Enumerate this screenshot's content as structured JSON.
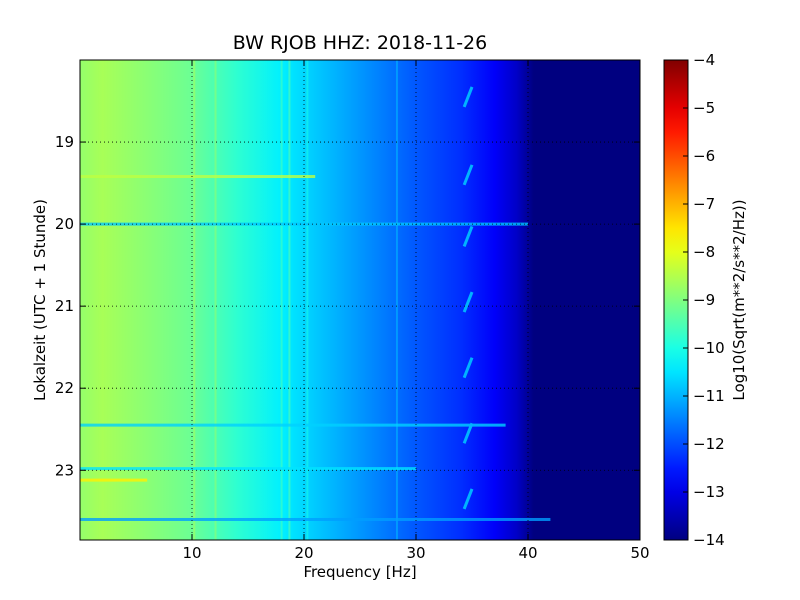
{
  "chart_data": {
    "type": "heatmap",
    "title": "BW RJOB HHZ: 2018-11-26",
    "xlabel": "Frequency [Hz]",
    "ylabel": "Lokalzeit (UTC + 1 Stunde)",
    "xlim": [
      0,
      50
    ],
    "ylim": [
      18.0,
      23.85
    ],
    "y_inverted": true,
    "x_ticks": [
      10,
      20,
      30,
      40,
      50
    ],
    "y_ticks": [
      19,
      20,
      21,
      22,
      23
    ],
    "grid": true,
    "colormap": "jet",
    "colorbar": {
      "label": "Log10(Sqrt(m**2/s**2/Hz))",
      "range": [
        -14,
        -4
      ],
      "ticks": [
        -4,
        -5,
        -6,
        -7,
        -8,
        -9,
        -10,
        -11,
        -12,
        -13,
        -14
      ]
    },
    "frequency_profile": [
      {
        "x": 0,
        "value": -8.8
      },
      {
        "x": 2,
        "value": -8.6
      },
      {
        "x": 6,
        "value": -8.9
      },
      {
        "x": 10,
        "value": -9.2
      },
      {
        "x": 14,
        "value": -9.8
      },
      {
        "x": 18,
        "value": -10.4
      },
      {
        "x": 22,
        "value": -10.9
      },
      {
        "x": 26,
        "value": -11.4
      },
      {
        "x": 30,
        "value": -11.9
      },
      {
        "x": 34,
        "value": -12.3
      },
      {
        "x": 37,
        "value": -12.8
      },
      {
        "x": 39,
        "value": -13.3
      },
      {
        "x": 40.5,
        "value": -14
      },
      {
        "x": 50,
        "value": -14
      }
    ],
    "vertical_lines": [
      {
        "x": 10.2,
        "value": -8.6
      },
      {
        "x": 12.1,
        "value": -8.8
      },
      {
        "x": 18.0,
        "value": -9.5
      },
      {
        "x": 18.7,
        "value": -9.3
      },
      {
        "x": 20.3,
        "value": -10.0
      },
      {
        "x": 28.3,
        "value": -10.9
      }
    ],
    "horizontal_events": [
      {
        "y": 19.42,
        "x_end": 21,
        "value": -8.4
      },
      {
        "y": 20.0,
        "x_end": 40,
        "value": -10.8
      },
      {
        "y": 22.45,
        "x_end": 38,
        "value": -10.7
      },
      {
        "y": 22.98,
        "x_end": 30,
        "value": -10.5
      },
      {
        "y": 23.12,
        "x_end": 6,
        "value": -7.6
      },
      {
        "y": 23.6,
        "x_end": 42,
        "value": -11.2
      }
    ],
    "periodic_artifacts": [
      {
        "y": 18.45,
        "x_start": 34.3,
        "x_end": 35.0,
        "value": -11.0
      },
      {
        "y": 19.4,
        "x_start": 34.3,
        "x_end": 35.0,
        "value": -11.0
      },
      {
        "y": 20.15,
        "x_start": 34.3,
        "x_end": 35.0,
        "value": -11.0
      },
      {
        "y": 20.95,
        "x_start": 34.3,
        "x_end": 35.0,
        "value": -11.0
      },
      {
        "y": 21.75,
        "x_start": 34.3,
        "x_end": 35.0,
        "value": -11.0
      },
      {
        "y": 22.55,
        "x_start": 34.3,
        "x_end": 35.0,
        "value": -11.0
      },
      {
        "y": 23.35,
        "x_start": 34.3,
        "x_end": 35.0,
        "value": -11.0
      }
    ]
  }
}
